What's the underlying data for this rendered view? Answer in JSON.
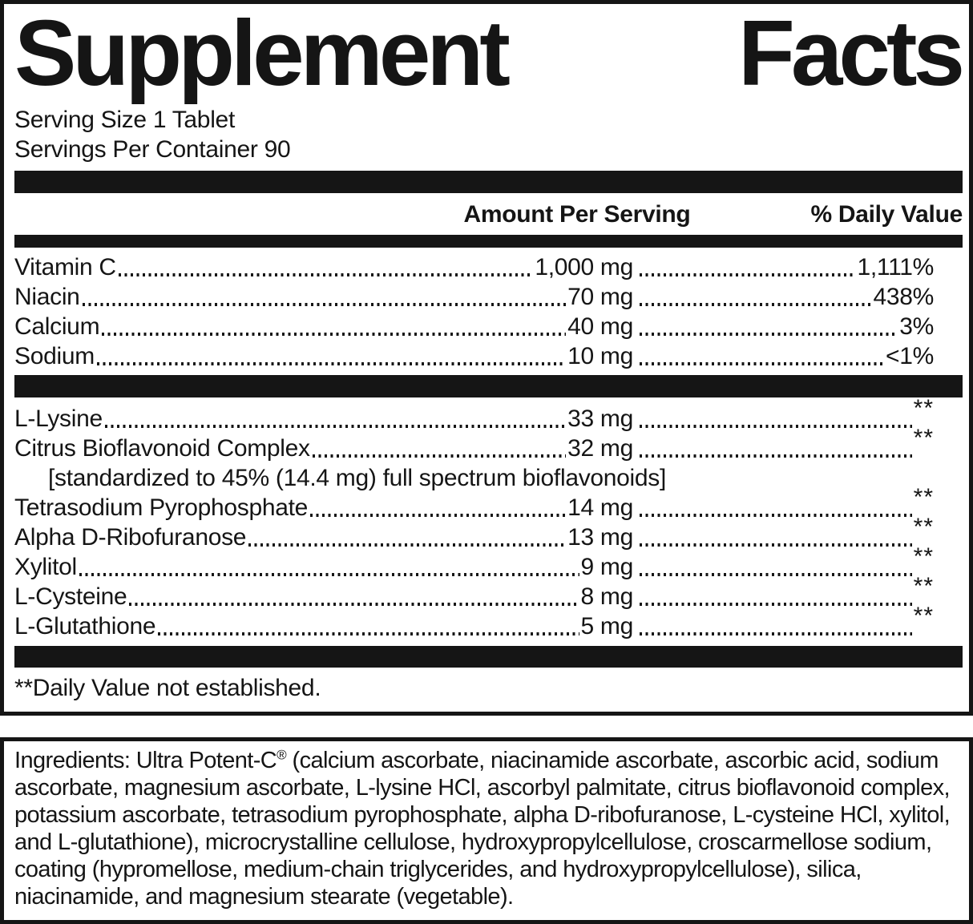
{
  "colors": {
    "ink": "#151515",
    "background": "#ffffff"
  },
  "title": {
    "word1": "Supplement",
    "word2": "Facts"
  },
  "serving": {
    "size": "Serving Size 1 Tablet",
    "per_container": "Servings Per Container 90"
  },
  "header": {
    "amount": "Amount Per Serving",
    "dv": "% Daily Value"
  },
  "main_rows": [
    {
      "name": "Vitamin C",
      "amount": "1,000 mg",
      "dv": "1,111%"
    },
    {
      "name": "Niacin",
      "amount": "70 mg",
      "dv": "438%"
    },
    {
      "name": "Calcium",
      "amount": "40 mg",
      "dv": "3%"
    },
    {
      "name": "Sodium",
      "amount": "10 mg",
      "dv": "<1%"
    }
  ],
  "other_rows": [
    {
      "name": "L-Lysine",
      "amount": "33 mg",
      "dv": "**"
    },
    {
      "name": "Citrus Bioflavonoid Complex",
      "amount": "32 mg",
      "dv": "**",
      "note": "[standardized to 45% (14.4 mg) full spectrum bioflavonoids]"
    },
    {
      "name": "Tetrasodium Pyrophosphate",
      "amount": "14 mg",
      "dv": "**"
    },
    {
      "name": "Alpha D-Ribofuranose",
      "amount": "13 mg",
      "dv": "**"
    },
    {
      "name": "Xylitol",
      "amount": "9 mg",
      "dv": "**"
    },
    {
      "name": "L-Cysteine",
      "amount": "8 mg",
      "dv": "**"
    },
    {
      "name": "L-Glutathione",
      "amount": "5 mg",
      "dv": "**"
    }
  ],
  "footnote": "**Daily Value not established.",
  "ingredients": {
    "lead": "Ingredients: Ultra Potent-C",
    "reg_mark": "®",
    "rest": " (calcium ascorbate, niacinamide ascorbate, ascorbic acid, sodium ascorbate, magnesium ascorbate, L-lysine HCl, ascorbyl palmitate, citrus bioflavonoid complex, potassium ascorbate, tetrasodium pyrophosphate, alpha D-ribofuranose, L-cysteine HCl, xylitol, and L-glutathione), microcrystalline cellulose, hydroxypropylcellulose, croscarmellose sodium, coating (hypromellose, medium-chain triglycerides, and hydroxypropylcellulose), silica, niacinamide, and magnesium stearate (vegetable)."
  }
}
